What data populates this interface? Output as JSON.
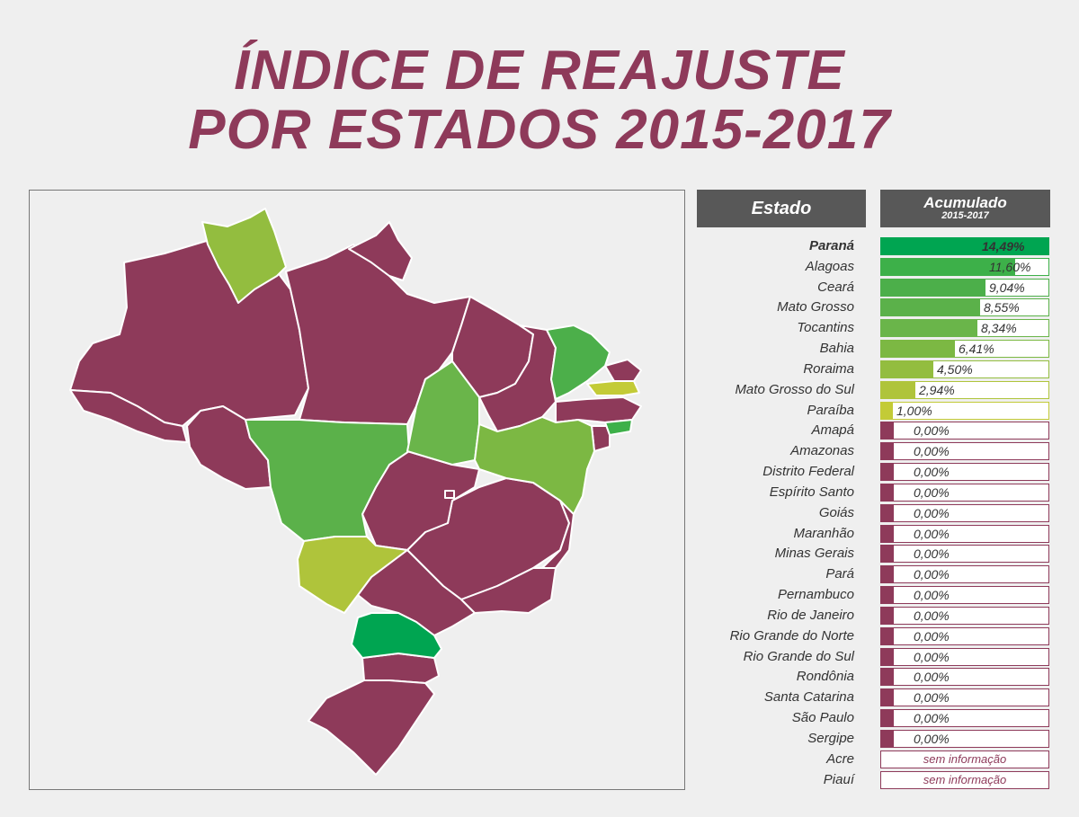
{
  "title": {
    "line1": "ÍNDICE DE REAJUSTE",
    "line2": "POR ESTADOS 2015-2017"
  },
  "table": {
    "header_state": "Estado",
    "header_value": "Acumulado",
    "header_value_sub": "2015-2017"
  },
  "colors": {
    "title": "#8e3a5a",
    "no_increase": "#8e3a5a",
    "header_bg": "#585858",
    "scale": [
      "#00a551",
      "#3db049",
      "#4caf4a",
      "#5bb14a",
      "#6ab54a",
      "#7cb843",
      "#93bd3f",
      "#afc43b",
      "#c3cb37"
    ]
  },
  "chart_data": {
    "type": "bar",
    "unit": "%",
    "categories": [
      "Paraná",
      "Alagoas",
      "Ceará",
      "Mato Grosso",
      "Tocantins",
      "Bahia",
      "Roraima",
      "Mato Grosso do Sul",
      "Paraíba",
      "Amapá",
      "Amazonas",
      "Distrito Federal",
      "Espírito Santo",
      "Goiás",
      "Maranhão",
      "Minas Gerais",
      "Pará",
      "Pernambuco",
      "Rio de Janeiro",
      "Rio Grande do Norte",
      "Rio Grande do Sul",
      "Rondônia",
      "Santa Catarina",
      "São Paulo",
      "Sergipe",
      "Acre",
      "Piauí"
    ],
    "values": [
      14.49,
      11.6,
      9.04,
      8.55,
      8.34,
      6.41,
      4.5,
      2.94,
      1.0,
      0,
      0,
      0,
      0,
      0,
      0,
      0,
      0,
      0,
      0,
      0,
      0,
      0,
      0,
      0,
      0,
      null,
      null
    ],
    "labels": [
      "14,49%",
      "11,60%",
      "9,04%",
      "8,55%",
      "8,34%",
      "6,41%",
      "4,50%",
      "2,94%",
      "1,00%",
      "0,00%",
      "0,00%",
      "0,00%",
      "0,00%",
      "0,00%",
      "0,00%",
      "0,00%",
      "0,00%",
      "0,00%",
      "0,00%",
      "0,00%",
      "0,00%",
      "0,00%",
      "0,00%",
      "0,00%",
      "0,00%",
      "sem informação",
      "sem informação"
    ],
    "xlim": [
      0,
      14.49
    ]
  }
}
